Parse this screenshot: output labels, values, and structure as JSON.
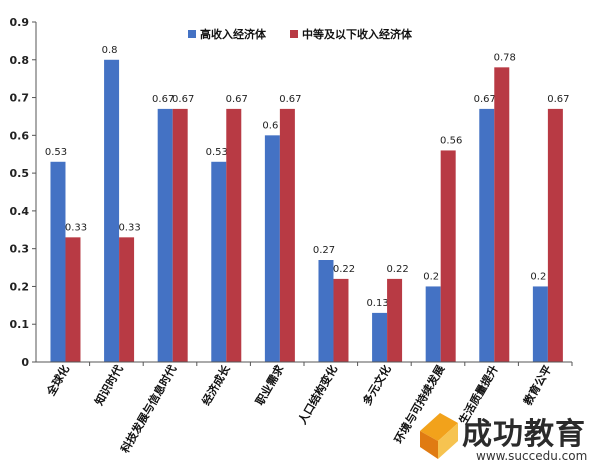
{
  "chart_data": {
    "type": "bar",
    "categories": [
      "全球化",
      "知识时代",
      "科技发展与信息时代",
      "经济成长",
      "职业需求",
      "人口结构变化",
      "多元文化",
      "环境与可持续发展",
      "生活质量提升",
      "教育公平"
    ],
    "series": [
      {
        "name": "高收入经济体",
        "values": [
          0.53,
          0.8,
          0.67,
          0.53,
          0.6,
          0.27,
          0.13,
          0.2,
          0.67,
          0.2
        ],
        "labels": [
          "0.53",
          "0.8",
          "0.67",
          "0.53",
          "0.6",
          "0.27",
          "0.13",
          "0.2",
          "0.67",
          "0.2"
        ],
        "color": "#4472c4"
      },
      {
        "name": "中等及以下收入经济体",
        "values": [
          0.33,
          0.33,
          0.67,
          0.67,
          0.67,
          0.22,
          0.22,
          0.56,
          0.78,
          0.67
        ],
        "labels": [
          "0.33",
          "0.33",
          "0.67",
          "0.67",
          "0.67",
          "0.22",
          "0.22",
          "0.56",
          "0.78",
          "0.67"
        ],
        "color": "#b83a44"
      }
    ],
    "ylim": [
      0,
      0.9
    ],
    "yticks": [
      "0",
      "0.1",
      "0.2",
      "0.3",
      "0.4",
      "0.5",
      "0.6",
      "0.7",
      "0.8",
      "0.9"
    ],
    "grid": false,
    "legend": "top-center"
  },
  "watermark": {
    "name": "成功教育",
    "url": "www.succedu.com"
  }
}
